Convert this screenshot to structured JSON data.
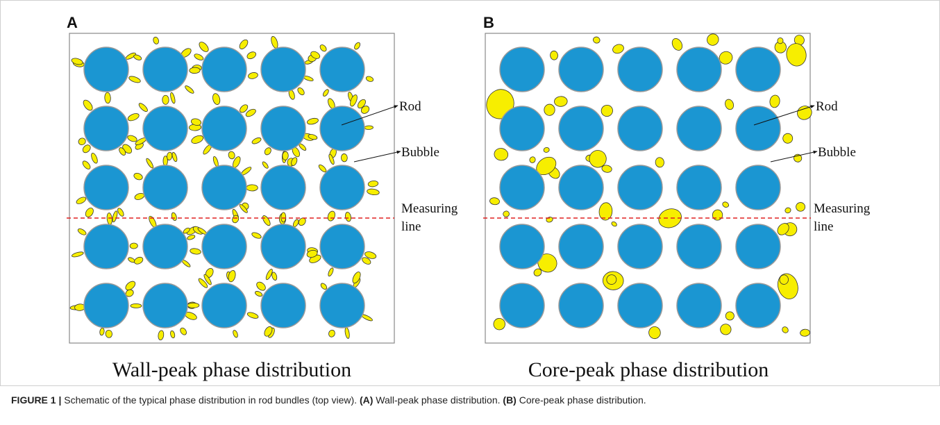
{
  "panels": [
    {
      "letter": "A",
      "subtitle": "Wall-peak phase distribution",
      "rod_label": "Rod",
      "bubble_label": "Bubble",
      "measuring_label": [
        "Measuring",
        "line"
      ]
    },
    {
      "letter": "B",
      "subtitle": "Core-peak phase distribution",
      "rod_label": "Rod",
      "bubble_label": "Bubble",
      "measuring_label": [
        "Measuring",
        "line"
      ]
    }
  ],
  "caption": {
    "label": "FIGURE 1 |",
    "text": "Schematic of the typical phase distribution in rod bundles (top view).",
    "a_tag": "(A)",
    "a_text": "Wall-peak phase distribution.",
    "b_tag": "(B)",
    "b_text": "Core-peak phase distribution."
  }
}
